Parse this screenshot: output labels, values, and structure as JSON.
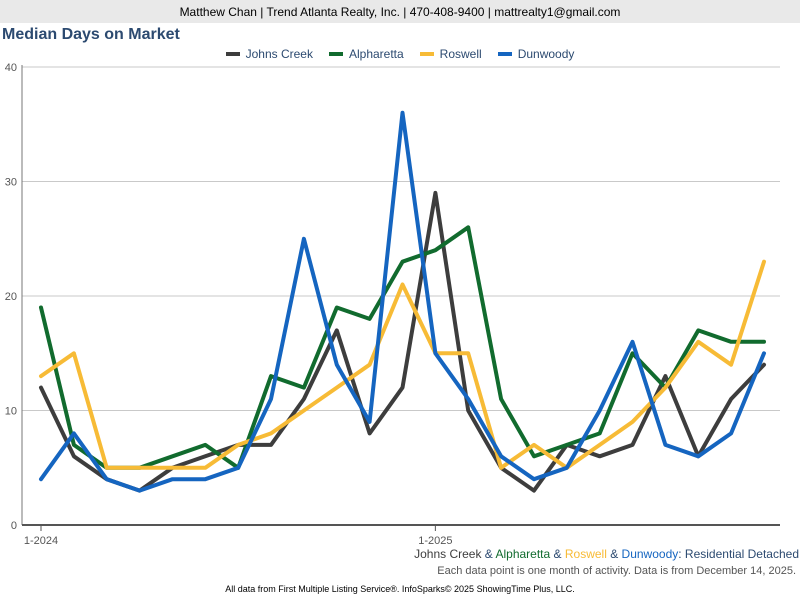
{
  "header": {
    "contact": "Matthew Chan | Trend Atlanta Realty, Inc. | 470-408-9400 | mattrealty1@gmail.com"
  },
  "colors": {
    "title": "#2c4a70",
    "header_bg": "#e9e9e9"
  },
  "chart_data": {
    "type": "line",
    "title": "Median Days on Market",
    "xlabel": "",
    "ylabel": "",
    "ylim": [
      0,
      40
    ],
    "yticks": [
      0,
      10,
      20,
      30,
      40
    ],
    "grid": true,
    "legend": "top-center",
    "x": [
      "2024-01",
      "2024-02",
      "2024-03",
      "2024-04",
      "2024-05",
      "2024-06",
      "2024-07",
      "2024-08",
      "2024-09",
      "2024-10",
      "2024-11",
      "2024-12",
      "2025-01",
      "2025-02",
      "2025-03",
      "2025-04",
      "2025-05",
      "2025-06",
      "2025-07",
      "2025-08",
      "2025-09",
      "2025-10",
      "2025-11",
      "2025-12"
    ],
    "xtick_labels": [
      {
        "index": 0,
        "label": "1-2024"
      },
      {
        "index": 12,
        "label": "1-2025"
      }
    ],
    "series": [
      {
        "name": "Johns Creek",
        "color": "#3d3d3d",
        "values": [
          12,
          6,
          4,
          3,
          5,
          6,
          7,
          7,
          11,
          17,
          8,
          12,
          29,
          10,
          5,
          3,
          7,
          6,
          7,
          13,
          6,
          11,
          14,
          null
        ]
      },
      {
        "name": "Alpharetta",
        "color": "#116b2e",
        "values": [
          19,
          7,
          5,
          5,
          6,
          7,
          5,
          13,
          12,
          19,
          18,
          23,
          24,
          26,
          11,
          6,
          7,
          8,
          15,
          12,
          17,
          16,
          16,
          null
        ]
      },
      {
        "name": "Roswell",
        "color": "#f7bb36",
        "values": [
          13,
          15,
          5,
          5,
          5,
          5,
          7,
          8,
          10,
          12,
          14,
          21,
          15,
          15,
          5,
          7,
          5,
          7,
          9,
          12,
          16,
          14,
          23,
          null
        ]
      },
      {
        "name": "Dunwoody",
        "color": "#1565c0",
        "values": [
          4,
          8,
          4,
          3,
          4,
          4,
          5,
          11,
          25,
          14,
          9,
          36,
          15,
          11,
          6,
          4,
          5,
          10,
          16,
          7,
          6,
          8,
          15,
          null
        ]
      }
    ]
  },
  "footer": {
    "series_line": {
      "names": [
        "Johns Creek",
        "Alpharetta",
        "Roswell",
        "Dunwoody"
      ],
      "separator": " & ",
      "suffix": ": Residential Detached"
    },
    "note": "Each data point is one month of activity. Data is from December 14, 2025.",
    "source": "All data from First Multiple Listing Service®. InfoSparks© 2025 ShowingTime Plus, LLC."
  }
}
